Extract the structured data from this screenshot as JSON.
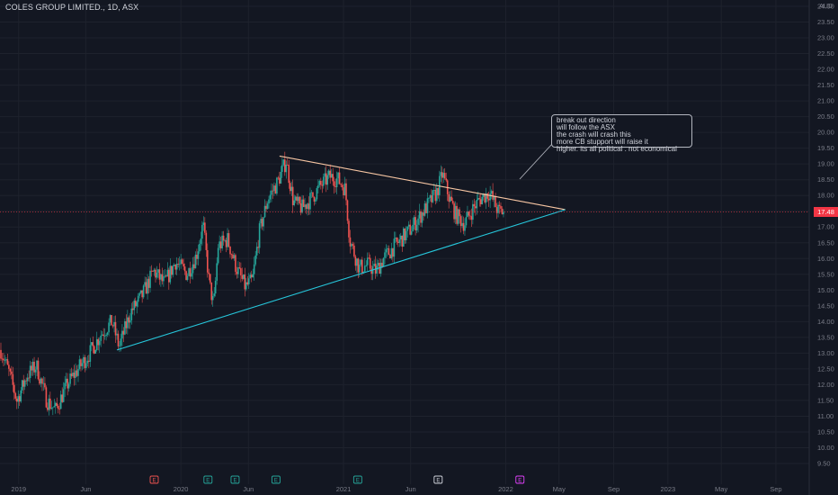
{
  "header": {
    "symbol_title": "COLES GROUP LIMITED., 1D, ASX",
    "currency": "AUD"
  },
  "annotation": {
    "lines": [
      "break out direction",
      "will follow the ASX",
      "the crash will crash this",
      "more CB stupport will raise it",
      "higher. its all political . not economical"
    ]
  },
  "colors": {
    "background": "#131722",
    "up": "#26a69a",
    "down": "#ef5350",
    "upper_trendline": "#f7c6a3",
    "lower_trendline": "#26c6da",
    "last_price": "#f23645"
  },
  "event_markers": [
    {
      "label": "E",
      "color": "#ef5350",
      "x": "2019-11"
    },
    {
      "label": "E",
      "color": "#26a69a",
      "x": "2020-03"
    },
    {
      "label": "E",
      "color": "#26a69a",
      "x": "2020-05"
    },
    {
      "label": "E",
      "color": "#26a69a",
      "x": "2020-08"
    },
    {
      "label": "E",
      "color": "#26a69a",
      "x": "2021-02"
    },
    {
      "label": "E",
      "color": "#d1d4dc",
      "x": "2021-08"
    },
    {
      "label": "E",
      "color": "#e040fb",
      "x": "2022-02"
    }
  ],
  "chart_data": {
    "type": "line",
    "title": "COLES GROUP LIMITED., 1D, ASX",
    "ylabel": "AUD",
    "ylim": [
      9.3,
      24.2
    ],
    "xlim": [
      "2018-11-20",
      "2023-11-15"
    ],
    "y_ticks": [
      "9.50",
      "10.00",
      "10.50",
      "11.00",
      "11.50",
      "12.00",
      "12.50",
      "13.00",
      "13.50",
      "14.00",
      "14.50",
      "15.00",
      "15.50",
      "16.00",
      "16.50",
      "17.00",
      "17.50",
      "18.00",
      "18.50",
      "19.00",
      "19.50",
      "20.00",
      "20.50",
      "21.00",
      "21.50",
      "22.00",
      "22.50",
      "23.00",
      "23.50",
      "24.00"
    ],
    "x_ticks": [
      {
        "label": "2019",
        "date": "2019-01"
      },
      {
        "label": "Jun",
        "date": "2019-06"
      },
      {
        "label": "2020",
        "date": "2020-01"
      },
      {
        "label": "Jun",
        "date": "2020-06"
      },
      {
        "label": "2021",
        "date": "2021-01"
      },
      {
        "label": "Jun",
        "date": "2021-06"
      },
      {
        "label": "2022",
        "date": "2022-01"
      },
      {
        "label": "May",
        "date": "2022-05"
      },
      {
        "label": "Sep",
        "date": "2022-09"
      },
      {
        "label": "2023",
        "date": "2023-01"
      },
      {
        "label": "May",
        "date": "2023-05"
      },
      {
        "label": "Sep",
        "date": "2023-09"
      }
    ],
    "last_price": 17.48,
    "last_price_label": "17.48",
    "series": [
      {
        "points": [
          [
            "2018-11-22",
            13.1
          ],
          [
            "2018-12-10",
            12.4
          ],
          [
            "2018-12-28",
            11.5
          ],
          [
            "2019-01-20",
            12.3
          ],
          [
            "2019-02-10",
            12.6
          ],
          [
            "2019-03-05",
            11.5
          ],
          [
            "2019-03-25",
            11.2
          ],
          [
            "2019-04-20",
            12.0
          ],
          [
            "2019-05-15",
            12.5
          ],
          [
            "2019-06-10",
            13.0
          ],
          [
            "2019-07-05",
            13.6
          ],
          [
            "2019-07-30",
            14.0
          ],
          [
            "2019-08-15",
            13.2
          ],
          [
            "2019-09-10",
            14.3
          ],
          [
            "2019-10-05",
            14.8
          ],
          [
            "2019-11-01",
            15.6
          ],
          [
            "2019-11-25",
            15.2
          ],
          [
            "2019-12-20",
            15.9
          ],
          [
            "2020-01-15",
            15.5
          ],
          [
            "2020-02-05",
            16.1
          ],
          [
            "2020-02-20",
            17.1
          ],
          [
            "2020-03-05",
            15.2
          ],
          [
            "2020-03-15",
            14.5
          ],
          [
            "2020-03-25",
            16.4
          ],
          [
            "2020-04-15",
            16.6
          ],
          [
            "2020-05-05",
            15.7
          ],
          [
            "2020-05-25",
            15.1
          ],
          [
            "2020-06-10",
            15.3
          ],
          [
            "2020-06-25",
            16.8
          ],
          [
            "2020-07-15",
            17.9
          ],
          [
            "2020-08-05",
            18.4
          ],
          [
            "2020-08-25",
            19.1
          ],
          [
            "2020-09-10",
            17.8
          ],
          [
            "2020-09-30",
            17.6
          ],
          [
            "2020-10-20",
            17.9
          ],
          [
            "2020-11-10",
            18.3
          ],
          [
            "2020-12-01",
            18.6
          ],
          [
            "2020-12-20",
            18.5
          ],
          [
            "2021-01-05",
            18.2
          ],
          [
            "2021-01-15",
            16.6
          ],
          [
            "2021-02-05",
            15.7
          ],
          [
            "2021-02-25",
            15.8
          ],
          [
            "2021-03-15",
            15.6
          ],
          [
            "2021-04-01",
            16.0
          ],
          [
            "2021-04-20",
            16.3
          ],
          [
            "2021-05-10",
            16.6
          ],
          [
            "2021-05-30",
            16.9
          ],
          [
            "2021-06-20",
            17.3
          ],
          [
            "2021-07-10",
            17.7
          ],
          [
            "2021-07-30",
            18.1
          ],
          [
            "2021-08-12",
            18.7
          ],
          [
            "2021-08-25",
            18.0
          ],
          [
            "2021-09-10",
            17.4
          ],
          [
            "2021-09-30",
            17.1
          ],
          [
            "2021-10-20",
            17.6
          ],
          [
            "2021-11-05",
            17.9
          ],
          [
            "2021-11-25",
            18.1
          ],
          [
            "2021-12-15",
            17.5
          ],
          [
            "2021-12-28",
            17.48
          ]
        ]
      }
    ],
    "trendlines": [
      {
        "name": "upper",
        "from": [
          "2020-08-10",
          19.25
        ],
        "to": [
          "2022-05-15",
          17.55
        ]
      },
      {
        "name": "lower",
        "from": [
          "2019-08-10",
          13.1
        ],
        "to": [
          "2022-05-15",
          17.55
        ]
      }
    ]
  }
}
